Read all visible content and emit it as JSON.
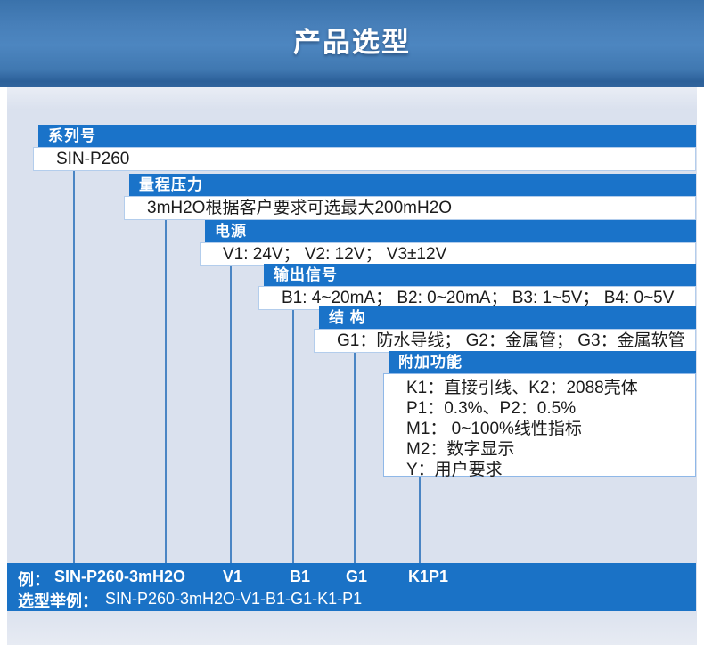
{
  "header": {
    "title": "产品选型"
  },
  "groups": [
    {
      "label": "系列号",
      "lines": [
        "SIN-P260"
      ]
    },
    {
      "label": "量程压力",
      "lines": [
        "3mH2O根据客户要求可选最大200mH2O"
      ]
    },
    {
      "label": "电源",
      "lines": [
        "V1: 24V； V2: 12V； V3±12V"
      ]
    },
    {
      "label": "输出信号",
      "lines": [
        "B1: 4~20mA； B2: 0~20mA； B3: 1~5V； B4: 0~5V"
      ]
    },
    {
      "label": "结 构",
      "lines": [
        "G1：防水导线； G2：金属管； G3：金属软管"
      ]
    },
    {
      "label": "附加功能",
      "lines": [
        "K1：直接引线、K2：2088壳体",
        "P1：0.3%、P2：0.5%",
        "M1： 0~100%线性指标",
        "M2：数字显示",
        "Y：用户要求"
      ]
    }
  ],
  "example": {
    "label": "例：",
    "tokens": [
      "SIN-P260-3mH2O",
      "V1",
      "B1",
      "G1",
      "K1P1"
    ],
    "selection_label": "选型举例：",
    "selection_value": "SIN-P260-3mH2O-V1-B1-G1-K1-P1"
  },
  "colors": {
    "group_bar_blue": "#1a73c9",
    "example_bar_blue": "#1a72c6",
    "content_background": "#dae1ee",
    "connector_line": "#4a85c4",
    "header_gradient_top": "#3a72ab",
    "header_gradient_bottom": "#2b5f98"
  }
}
